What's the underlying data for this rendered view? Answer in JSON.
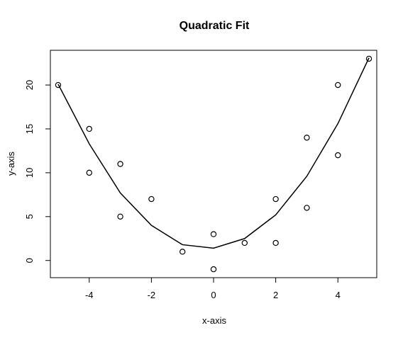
{
  "chart_data": {
    "type": "scatter",
    "title": "Quadratic Fit",
    "xlabel": "x-axis",
    "ylabel": "y-axis",
    "xlim": [
      -5.25,
      5.25
    ],
    "ylim": [
      -1.96,
      23.96
    ],
    "x_ticks": [
      -4,
      -2,
      0,
      2,
      4
    ],
    "y_ticks": [
      0,
      5,
      10,
      15,
      20
    ],
    "x_tick_labels": [
      "-4",
      "-2",
      "0",
      "2",
      "4"
    ],
    "y_tick_labels": [
      "0",
      "5",
      "10",
      "15",
      "20"
    ],
    "grid": false,
    "series": [
      {
        "type": "scatter",
        "marker": "open-circle",
        "color": "#000000",
        "x": [
          -5,
          -4,
          -4,
          -3,
          -3,
          -2,
          -1,
          0,
          0,
          1,
          2,
          2,
          3,
          3,
          4,
          4,
          5
        ],
        "y": [
          20,
          15,
          10,
          11,
          5,
          7,
          1,
          3,
          -1,
          2,
          7,
          2,
          14,
          6,
          20,
          12,
          23
        ]
      },
      {
        "type": "line",
        "color": "#000000",
        "x": [
          -5,
          -4,
          -3,
          -2,
          -1,
          0,
          1,
          2,
          3,
          4,
          5
        ],
        "y": [
          20.1,
          13.3,
          7.7,
          4.0,
          1.8,
          1.4,
          2.5,
          5.2,
          9.6,
          15.6,
          23.1
        ]
      }
    ]
  }
}
